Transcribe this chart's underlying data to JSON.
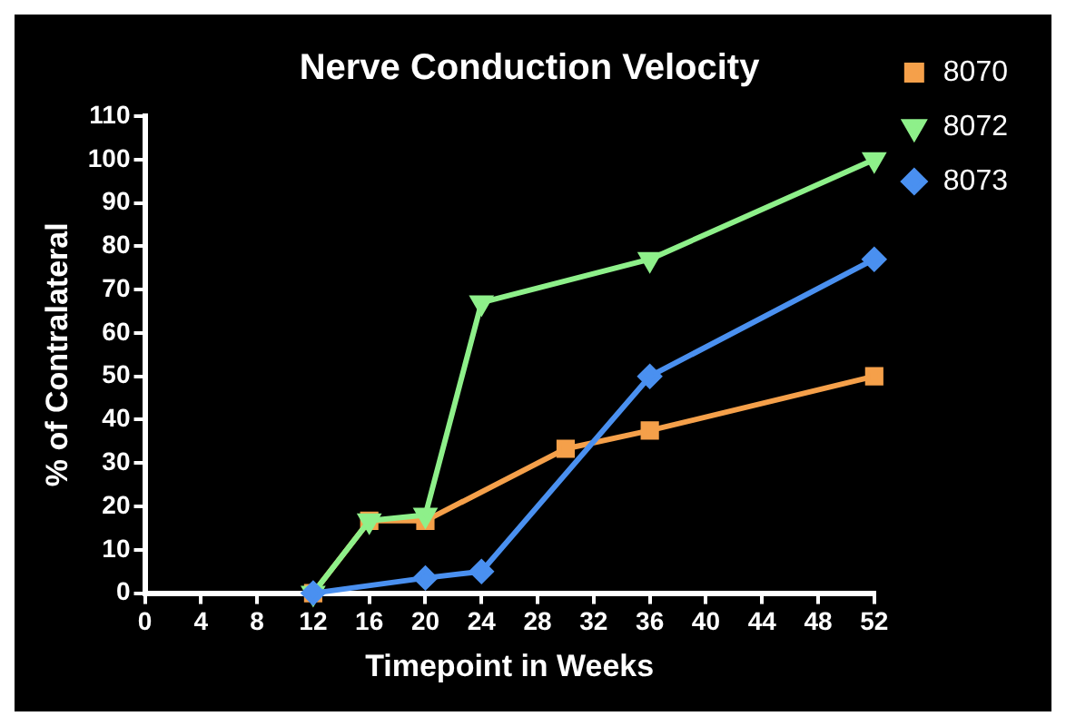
{
  "chart_data": {
    "type": "line",
    "title": "Nerve Conduction Velocity",
    "xlabel": "Timepoint in Weeks",
    "ylabel": "% of Contralateral",
    "xlim": [
      0,
      52
    ],
    "xticks": [
      0,
      4,
      8,
      12,
      16,
      20,
      24,
      28,
      32,
      36,
      40,
      44,
      48,
      52
    ],
    "ylim": [
      0,
      110
    ],
    "yticks": [
      0,
      10,
      20,
      30,
      40,
      50,
      60,
      70,
      80,
      90,
      100,
      110
    ],
    "grid": false,
    "legend": "top right",
    "series": [
      {
        "name": "8070",
        "color": "#f5a04a",
        "marker": "square",
        "x": [
          12,
          16,
          20,
          30,
          36,
          52
        ],
        "values": [
          0,
          16.7,
          16.7,
          33.3,
          37.5,
          50
        ]
      },
      {
        "name": "8072",
        "color": "#8ef08a",
        "marker": "triangle",
        "x": [
          12,
          16,
          20,
          24,
          36,
          52
        ],
        "values": [
          0,
          16.7,
          18,
          67,
          77,
          100
        ]
      },
      {
        "name": "8073",
        "color": "#4a90f0",
        "marker": "diamond",
        "x": [
          12,
          20,
          24,
          36,
          52
        ],
        "values": [
          0,
          3.5,
          5,
          50,
          77
        ]
      }
    ]
  }
}
